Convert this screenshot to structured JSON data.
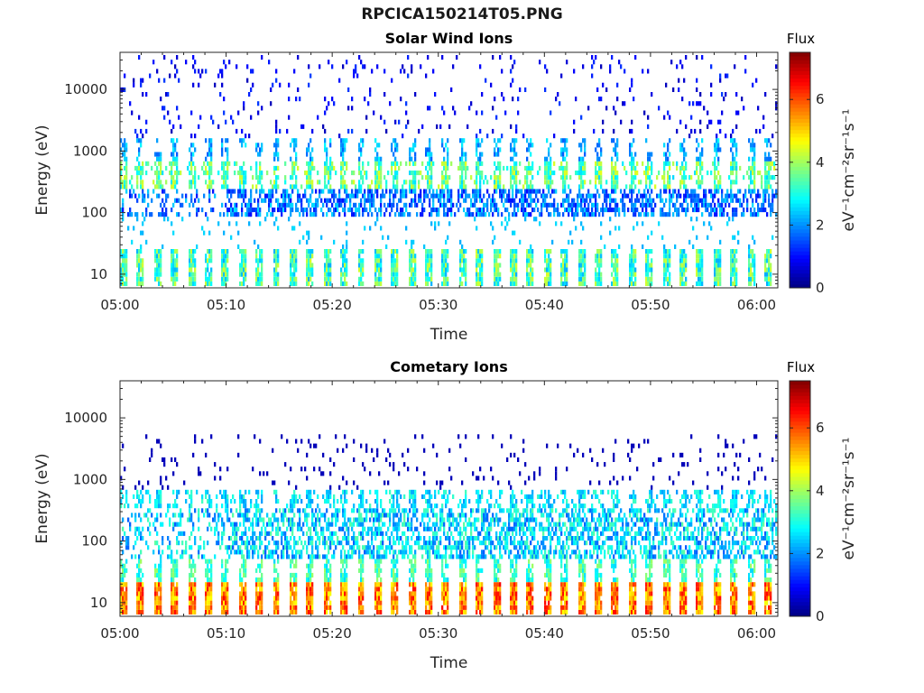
{
  "figure": {
    "title": "RPCICA150214T05.PNG"
  },
  "chart_data": [
    {
      "type": "heatmap",
      "title": "Solar Wind Ions",
      "xlabel": "Time",
      "ylabel": "Energy (eV)",
      "y_scale": "log",
      "xlim": [
        "05:00",
        "06:02"
      ],
      "ylim": [
        6,
        40000
      ],
      "x_ticks": [
        "05:00",
        "05:10",
        "05:20",
        "05:30",
        "05:40",
        "05:50",
        "06:00"
      ],
      "y_ticks": [
        "10",
        "100",
        "1000",
        "10000"
      ],
      "colorbar": {
        "title": "Flux",
        "label": "eV⁻¹cm⁻²sr⁻¹s⁻¹",
        "range": [
          0,
          7.5
        ],
        "ticks": [
          "0",
          "2",
          "4",
          "6"
        ],
        "colormap": "jet"
      },
      "description_of_values": "Repeating sweeps roughly every 1.6 min; bursts near 10–25 eV (flux ~2–4), band near 100–200 eV (flux ~1–2), band near 400–600 eV (flux ~3–4), sparse low flux up to 40000 eV"
    },
    {
      "type": "heatmap",
      "title": "Cometary Ions",
      "xlabel": "Time",
      "ylabel": "Energy (eV)",
      "y_scale": "log",
      "xlim": [
        "05:00",
        "06:02"
      ],
      "ylim": [
        6,
        40000
      ],
      "x_ticks": [
        "05:00",
        "05:10",
        "05:20",
        "05:30",
        "05:40",
        "05:50",
        "06:00"
      ],
      "y_ticks": [
        "10",
        "100",
        "1000",
        "10000"
      ],
      "colorbar": {
        "title": "Flux",
        "label": "eV⁻¹cm⁻²sr⁻¹s⁻¹",
        "range": [
          0,
          7.5
        ],
        "ticks": [
          "0",
          "2",
          "4",
          "6"
        ],
        "colormap": "jet"
      },
      "description_of_values": "Repeating sweeps roughly every 1.6 min; intense bursts near 7–20 eV (flux ~5–6.5), broad band 50–300 eV (flux ~2–3.5), band near 400–600 eV (flux ~2–3), sparse low flux up to 5000 eV"
    }
  ]
}
